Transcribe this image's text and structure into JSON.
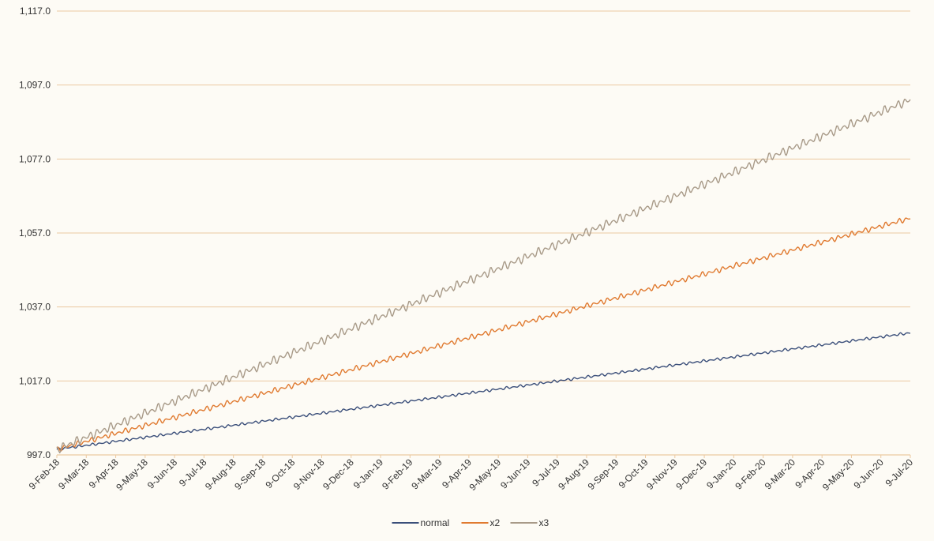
{
  "chart_data": {
    "type": "line",
    "title": "",
    "xlabel": "",
    "ylabel": "",
    "ylim": [
      997.0,
      1117.0
    ],
    "y_ticks": [
      "997.0",
      "1,017.0",
      "1,037.0",
      "1,057.0",
      "1,077.0",
      "1,097.0",
      "1,117.0"
    ],
    "x_ticks": [
      "9-Feb-18",
      "9-Mar-18",
      "9-Apr-18",
      "9-May-18",
      "9-Jun-18",
      "9-Jul-18",
      "9-Aug-18",
      "9-Sep-18",
      "9-Oct-18",
      "9-Nov-18",
      "9-Dec-18",
      "9-Jan-19",
      "9-Feb-19",
      "9-Mar-19",
      "9-Apr-19",
      "9-May-19",
      "9-Jun-19",
      "9-Jul-19",
      "9-Aug-19",
      "9-Sep-19",
      "9-Oct-19",
      "9-Nov-19",
      "9-Dec-19",
      "9-Jan-20",
      "9-Feb-20",
      "9-Mar-20",
      "9-Apr-20",
      "9-May-20",
      "9-Jun-20",
      "9-Jul-20"
    ],
    "grid": true,
    "legend_position": "bottom",
    "series": [
      {
        "name": "normal",
        "color": "#3b4f7a",
        "start": 998.5,
        "end": 1030.0,
        "noise_amplitude": 0.4
      },
      {
        "name": "x2",
        "color": "#e07a30",
        "start": 998.5,
        "end": 1061.0,
        "noise_amplitude": 0.8
      },
      {
        "name": "x3",
        "color": "#a89a88",
        "start": 998.5,
        "end": 1093.0,
        "noise_amplitude": 1.3
      }
    ]
  }
}
